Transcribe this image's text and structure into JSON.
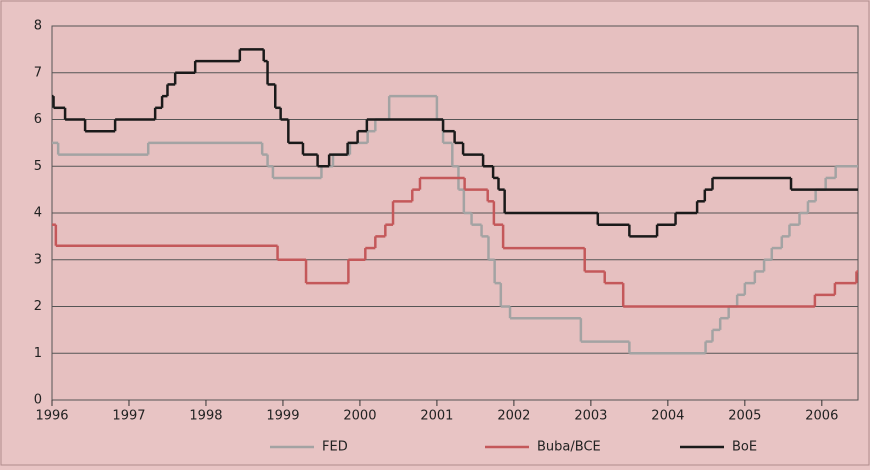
{
  "chart_data": {
    "type": "step",
    "xlim": [
      1996,
      2006.47
    ],
    "xticks": [
      1996,
      1997,
      1998,
      1999,
      2000,
      2001,
      2002,
      2003,
      2004,
      2005,
      2006
    ],
    "ylim": [
      0,
      8
    ],
    "yticks": [
      0,
      1,
      2,
      3,
      4,
      5,
      6,
      7,
      8
    ],
    "grid": true,
    "legend": "bottom",
    "series": [
      {
        "name": "FED",
        "color": "#a3a3a3",
        "x": [
          1996,
          1996.08,
          1997.25,
          1998.73,
          1998.8,
          1998.87,
          1999.5,
          1999.65,
          1999.87,
          2000.1,
          2000.2,
          2000.38,
          2001.0,
          2001.08,
          2001.2,
          2001.28,
          2001.35,
          2001.45,
          2001.58,
          2001.67,
          2001.75,
          2001.83,
          2001.95,
          2002.87,
          2003.5,
          2004.49,
          2004.58,
          2004.68,
          2004.79,
          2004.9,
          2005.0,
          2005.13,
          2005.25,
          2005.35,
          2005.48,
          2005.58,
          2005.71,
          2005.82,
          2005.92,
          2006.05,
          2006.18
        ],
        "values": [
          5.5,
          5.25,
          5.5,
          5.25,
          5.0,
          4.75,
          5.0,
          5.25,
          5.5,
          5.75,
          6.0,
          6.5,
          6.0,
          5.5,
          5.0,
          4.5,
          4.0,
          3.75,
          3.5,
          3.0,
          2.5,
          2.0,
          1.75,
          1.25,
          1.0,
          1.25,
          1.5,
          1.75,
          2.0,
          2.25,
          2.5,
          2.75,
          3.0,
          3.25,
          3.5,
          3.75,
          4.0,
          4.25,
          4.5,
          4.75,
          5.0
        ]
      },
      {
        "name": "Buba/BCE",
        "color": "#c4585a",
        "x": [
          1996,
          1996.05,
          1998.93,
          1999.3,
          1999.85,
          2000.07,
          2000.2,
          2000.33,
          2000.43,
          2000.68,
          2000.78,
          2001.36,
          2001.66,
          2001.74,
          2001.86,
          2002.92,
          2003.18,
          2003.42,
          2005.91,
          2006.17,
          2006.45
        ],
        "values": [
          3.75,
          3.3,
          3.0,
          2.5,
          3.0,
          3.25,
          3.5,
          3.75,
          4.25,
          4.5,
          4.75,
          4.5,
          4.25,
          3.75,
          3.25,
          2.75,
          2.5,
          2.0,
          2.25,
          2.5,
          2.75
        ]
      },
      {
        "name": "BoE",
        "color": "#1a1a1a",
        "x": [
          1996,
          1996.02,
          1996.17,
          1996.43,
          1996.82,
          1997.34,
          1997.43,
          1997.5,
          1997.6,
          1997.86,
          1998.44,
          1998.75,
          1998.8,
          1998.9,
          1998.97,
          1999.07,
          1999.26,
          1999.45,
          1999.6,
          1999.84,
          1999.97,
          2000.09,
          2001.08,
          2001.23,
          2001.34,
          2001.6,
          2001.73,
          2001.8,
          2001.88,
          2003.09,
          2003.5,
          2003.86,
          2004.1,
          2004.38,
          2004.48,
          2004.58,
          2005.6
        ],
        "values": [
          6.5,
          6.25,
          6.0,
          5.75,
          6.0,
          6.25,
          6.5,
          6.75,
          7.0,
          7.25,
          7.5,
          7.25,
          6.75,
          6.25,
          6.0,
          5.5,
          5.25,
          5.0,
          5.25,
          5.5,
          5.75,
          6.0,
          5.75,
          5.5,
          5.25,
          5.0,
          4.75,
          4.5,
          4.0,
          3.75,
          3.5,
          3.75,
          4.0,
          4.25,
          4.5,
          4.75,
          4.5
        ]
      }
    ]
  }
}
